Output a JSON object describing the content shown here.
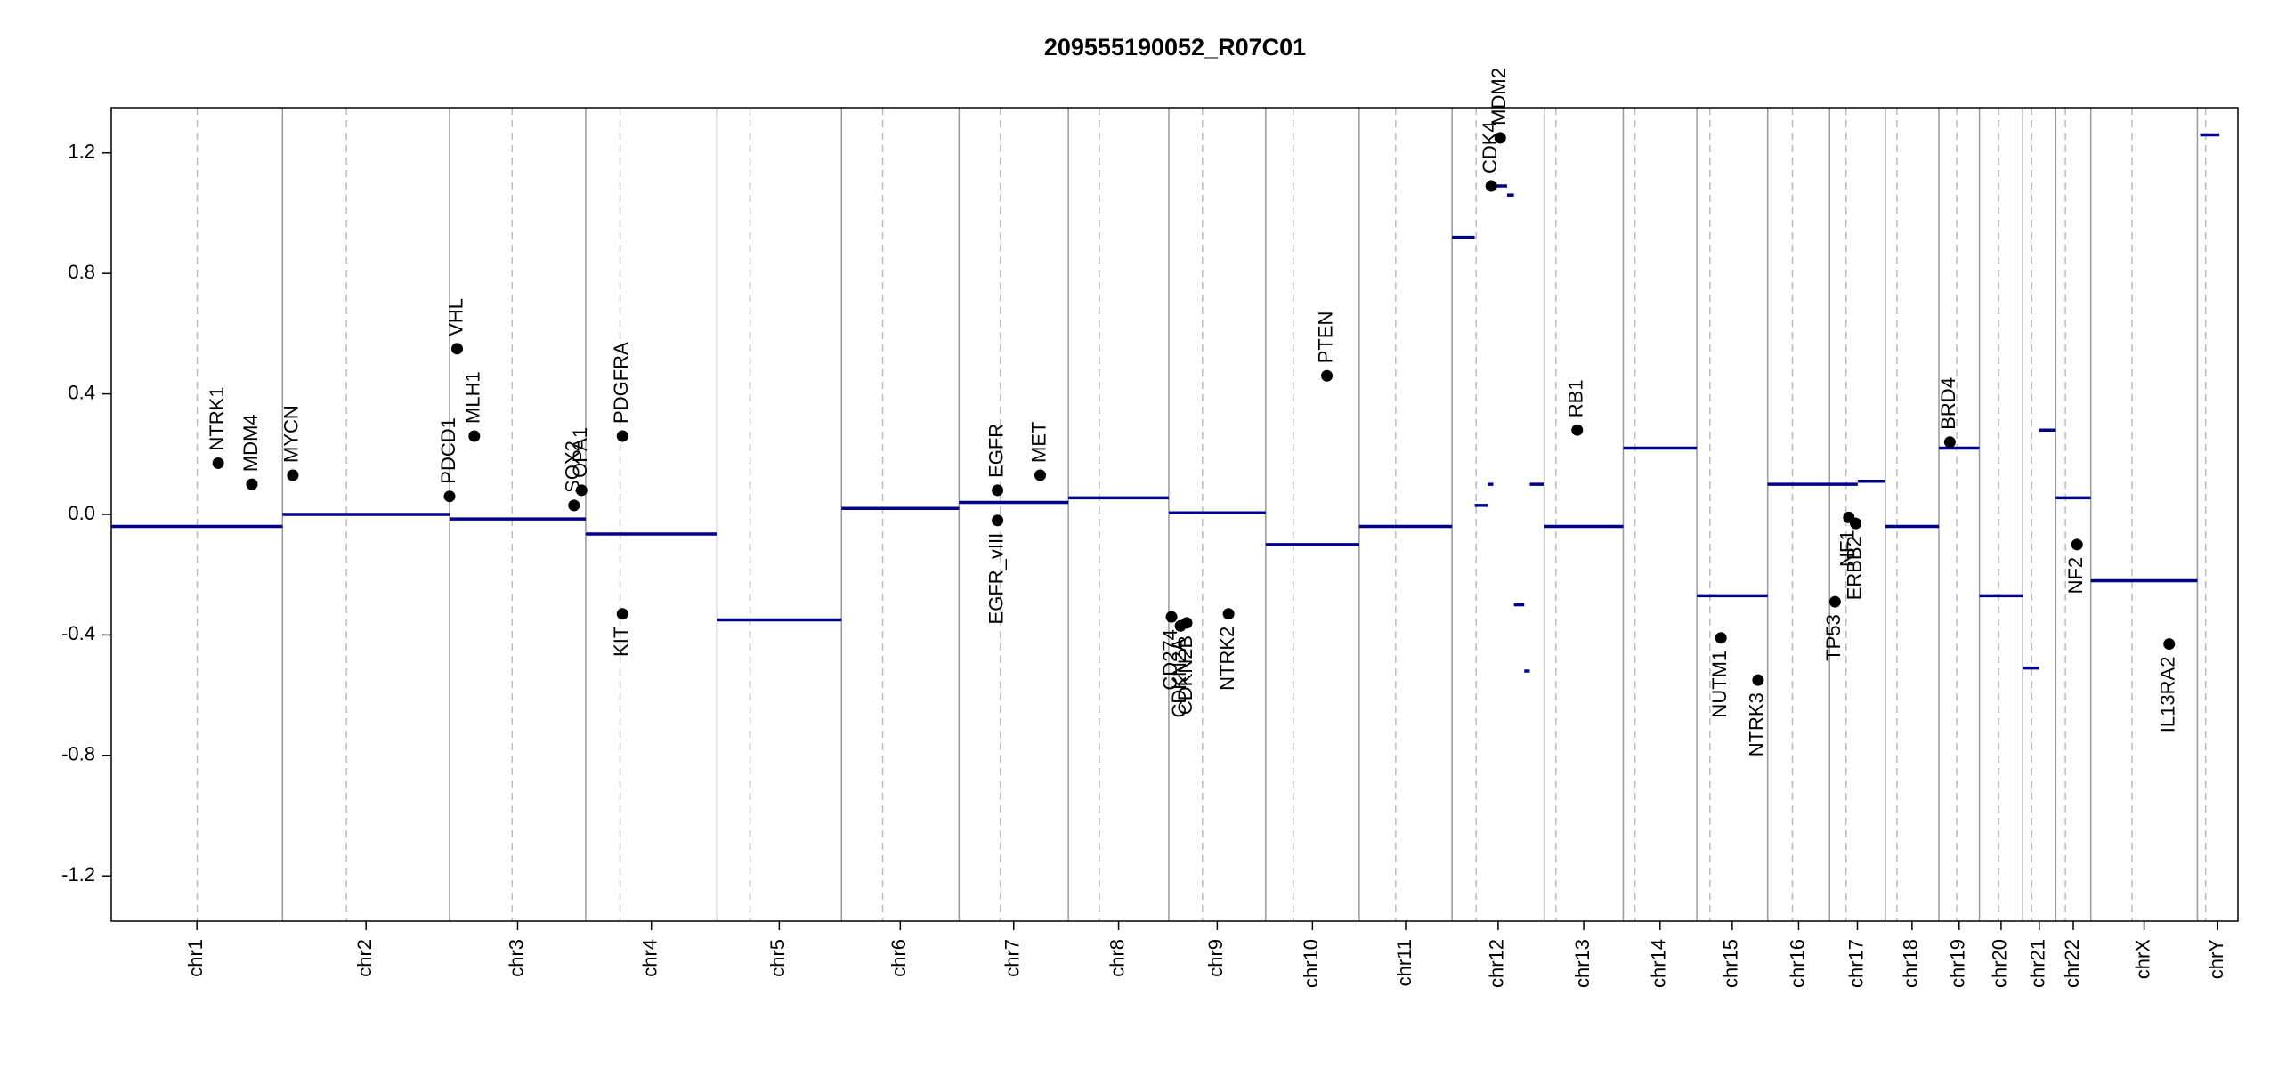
{
  "chart_data": {
    "type": "cnv",
    "title": "209555190052_R07C01",
    "chromosomes": [
      "chr1",
      "chr2",
      "chr3",
      "chr4",
      "chr5",
      "chr6",
      "chr7",
      "chr8",
      "chr9",
      "chr10",
      "chr11",
      "chr12",
      "chr13",
      "chr14",
      "chr15",
      "chr16",
      "chr17",
      "chr18",
      "chr19",
      "chr20",
      "chr21",
      "chr22",
      "chrX",
      "chrY"
    ],
    "chrom_lengths": [
      249,
      243,
      198,
      191,
      181,
      171,
      159,
      146,
      141,
      136,
      135,
      134,
      115,
      107,
      103,
      90,
      81,
      78,
      59,
      63,
      48,
      51,
      155,
      59
    ],
    "centromeres": [
      125,
      93,
      91,
      50,
      48,
      60,
      60,
      45,
      49,
      40,
      53,
      35,
      17,
      17,
      19,
      36,
      24,
      17,
      26,
      28,
      13,
      14,
      60,
      12
    ],
    "xlim": [
      0,
      3093
    ],
    "ylim": [
      -1.35,
      1.35
    ],
    "yticks": [
      -1.2,
      -0.8,
      -0.4,
      {
        "value": 0,
        "label": "0.0"
      },
      0.4,
      0.8,
      1.2
    ],
    "segments": {
      "color": "#00008b",
      "start": [
        0,
        249,
        492,
        690,
        881,
        1062,
        1233,
        1392,
        1538,
        1679,
        1815,
        1950,
        1983,
        2002,
        2010,
        2030,
        2040,
        2055,
        2063,
        2084,
        2199,
        2306,
        2409,
        2499,
        2540,
        2580,
        2658,
        2717,
        2780,
        2804,
        2828,
        2879,
        3038
      ],
      "end": [
        249,
        492,
        690,
        881,
        1062,
        1233,
        1392,
        1538,
        1679,
        1815,
        1950,
        1983,
        2002,
        2010,
        2030,
        2040,
        2055,
        2063,
        2084,
        2199,
        2306,
        2409,
        2499,
        2540,
        2580,
        2658,
        2717,
        2780,
        2804,
        2828,
        2879,
        3034,
        3066
      ],
      "values": [
        -0.04,
        0.0,
        -0.015,
        -0.065,
        -0.35,
        0.02,
        0.04,
        0.055,
        0.005,
        -0.1,
        -0.04,
        0.92,
        0.03,
        0.1,
        1.09,
        1.06,
        -0.3,
        -0.52,
        0.1,
        -0.04,
        0.22,
        -0.27,
        0.1,
        0.1,
        0.11,
        -0.04,
        0.22,
        -0.27,
        -0.51,
        0.28,
        0.055,
        -0.22,
        1.26
      ]
    },
    "genes": {
      "color": "#000000",
      "names": [
        "NTRK1",
        "MDM4",
        "MYCN",
        "PDCD1",
        "VHL",
        "MLH1",
        "SOX2",
        "OPA1",
        "PDGFRA",
        "KIT",
        "EGFR",
        "EGFR_vIII",
        "MET",
        "CD274",
        "CDKN2A",
        "CDKN2B",
        "NTRK2",
        "PTEN",
        "CDK4",
        "MDM2",
        "RB1",
        "NUTM1",
        "NTRK3",
        "TP53",
        "NF1",
        "ERBB2",
        "BRD4",
        "NF2",
        "IL13RA2"
      ],
      "x": [
        155.5,
        204.5,
        264,
        492,
        503,
        528,
        673,
        684,
        743.5,
        743.5,
        1289,
        1289,
        1351,
        1542,
        1555,
        1564,
        1625,
        1768,
        2007,
        2020,
        2132,
        2341,
        2395,
        2507,
        2527,
        2537,
        2674,
        2859,
        2993
      ],
      "values": [
        0.17,
        0.1,
        0.13,
        0.06,
        0.55,
        0.26,
        0.03,
        0.08,
        0.26,
        -0.33,
        0.08,
        -0.02,
        0.13,
        -0.34,
        -0.37,
        -0.36,
        -0.33,
        0.46,
        1.09,
        1.25,
        0.28,
        -0.41,
        -0.55,
        -0.29,
        -0.01,
        -0.03,
        0.24,
        -0.1,
        -0.43
      ]
    }
  }
}
